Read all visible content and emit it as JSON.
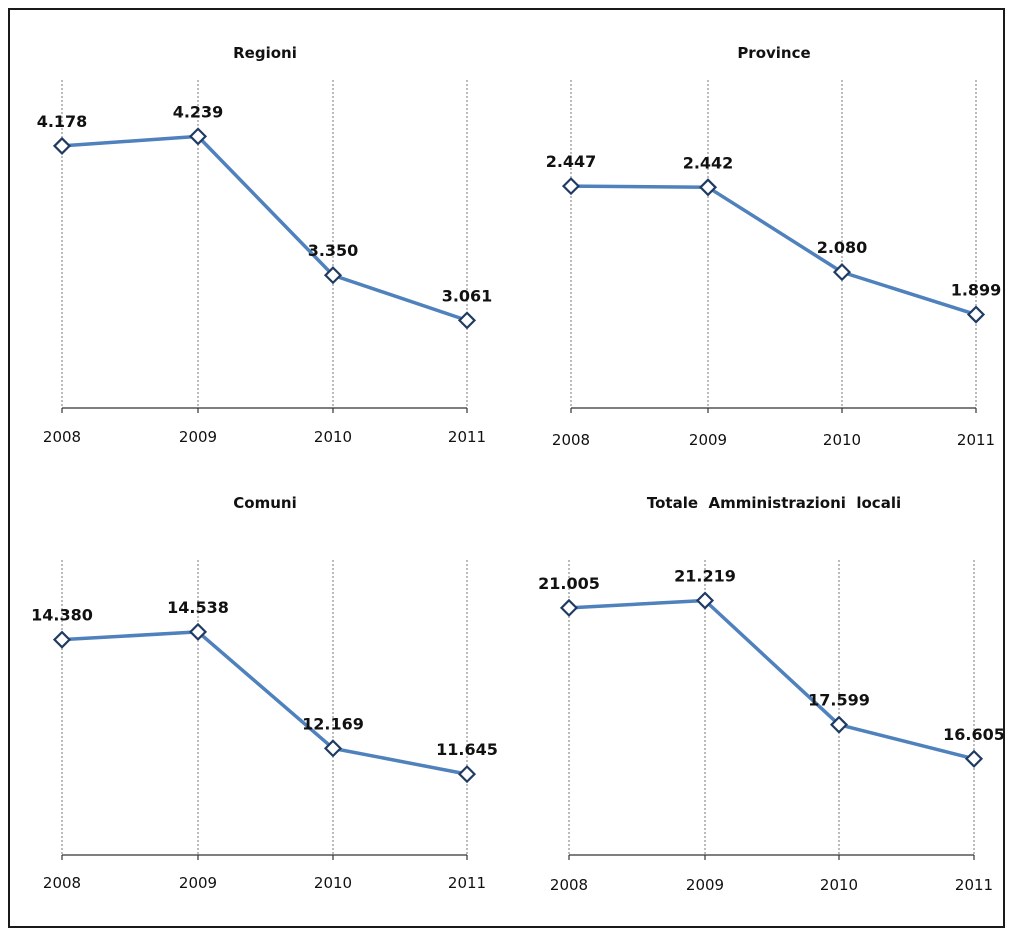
{
  "colors": {
    "line": "#4f81bd",
    "marker_border": "#1f3b63"
  },
  "chart_data": [
    {
      "type": "line",
      "title": "Regioni",
      "categories": [
        "2008",
        "2009",
        "2010",
        "2011"
      ],
      "values": [
        4178,
        4239,
        3350,
        3061
      ],
      "value_labels": [
        "4.178",
        "4.239",
        "3.350",
        "3.061"
      ],
      "ylim": [
        2500,
        4600
      ],
      "grid": "vertical"
    },
    {
      "type": "line",
      "title": "Province",
      "categories": [
        "2008",
        "2009",
        "2010",
        "2011"
      ],
      "values": [
        2447,
        2442,
        2080,
        1899
      ],
      "value_labels": [
        "2.447",
        "2.442",
        "2.080",
        "1.899"
      ],
      "ylim": [
        1500,
        2900
      ],
      "grid": "vertical"
    },
    {
      "type": "line",
      "title": "Comuni",
      "categories": [
        "2008",
        "2009",
        "2010",
        "2011"
      ],
      "values": [
        14380,
        14538,
        12169,
        11645
      ],
      "value_labels": [
        "14.380",
        "14.538",
        "12.169",
        "11.645"
      ],
      "ylim": [
        10000,
        16000
      ],
      "grid": "vertical"
    },
    {
      "type": "line",
      "title": "Totale  Amministrazioni  locali",
      "categories": [
        "2008",
        "2009",
        "2010",
        "2011"
      ],
      "values": [
        21005,
        21219,
        17599,
        16605
      ],
      "value_labels": [
        "21.005",
        "21.219",
        "17.599",
        "16.605"
      ],
      "ylim": [
        13800,
        22400
      ],
      "grid": "vertical"
    }
  ]
}
